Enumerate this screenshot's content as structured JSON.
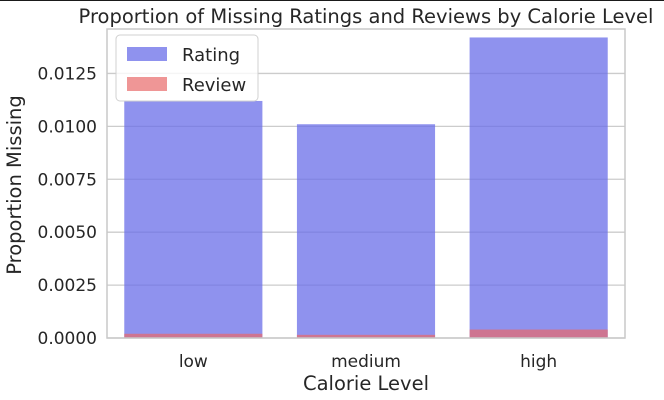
{
  "chart_data": {
    "type": "bar",
    "title": "Proportion of Missing Ratings and Reviews by Calorie Level",
    "xlabel": "Calorie Level",
    "ylabel": "Proportion Missing",
    "categories": [
      "low",
      "medium",
      "high"
    ],
    "series": [
      {
        "name": "Rating",
        "values": [
          0.0112,
          0.0101,
          0.0142
        ],
        "color": "#6a6ee8"
      },
      {
        "name": "Review",
        "values": [
          0.0002,
          0.00015,
          0.0004
        ],
        "color": "#e86a6a"
      }
    ],
    "overlay": true,
    "ylim": [
      0,
      0.0146
    ],
    "yticks": [
      0,
      0.0025,
      0.005,
      0.0075,
      0.01,
      0.0125
    ],
    "ytick_labels": [
      "0.0000",
      "0.0025",
      "0.0050",
      "0.0075",
      "0.0100",
      "0.0125"
    ],
    "grid": true,
    "legend_position": "top-left"
  }
}
